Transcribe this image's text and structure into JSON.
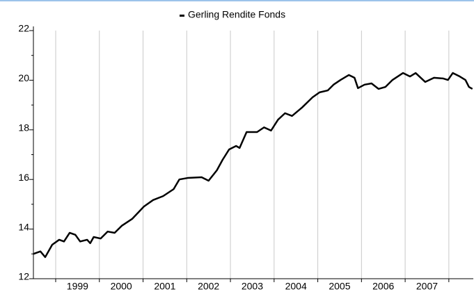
{
  "chart_data": {
    "type": "line",
    "series": [
      {
        "name": "Gerling Rendite Fonds",
        "color": "#000000",
        "x": [
          1998.49,
          1998.65,
          1998.76,
          1998.92,
          1999.08,
          1999.19,
          1999.32,
          1999.45,
          1999.56,
          1999.72,
          1999.79,
          1999.87,
          2000.03,
          2000.19,
          2000.35,
          2000.51,
          2000.75,
          2001.02,
          2001.23,
          2001.46,
          2001.7,
          2001.83,
          2002.02,
          2002.34,
          2002.5,
          2002.69,
          2002.82,
          2002.97,
          2003.13,
          2003.21,
          2003.37,
          2003.61,
          2003.77,
          2003.93,
          2004.09,
          2004.25,
          2004.41,
          2004.64,
          2004.88,
          2005.04,
          2005.23,
          2005.36,
          2005.52,
          2005.71,
          2005.84,
          2005.92,
          2006.07,
          2006.23,
          2006.39,
          2006.55,
          2006.71,
          2006.95,
          2007.11,
          2007.24,
          2007.46,
          2007.66,
          2007.87,
          2007.98,
          2008.09,
          2008.25,
          2008.38,
          2008.46,
          2008.54
        ],
        "values": [
          13.0,
          13.1,
          12.87,
          13.37,
          13.57,
          13.5,
          13.85,
          13.77,
          13.5,
          13.57,
          13.43,
          13.68,
          13.62,
          13.9,
          13.85,
          14.13,
          14.41,
          14.91,
          15.17,
          15.33,
          15.61,
          16.0,
          16.06,
          16.09,
          15.95,
          16.37,
          16.79,
          17.21,
          17.35,
          17.27,
          17.91,
          17.91,
          18.1,
          17.97,
          18.41,
          18.67,
          18.56,
          18.9,
          19.31,
          19.51,
          19.59,
          19.82,
          20.01,
          20.21,
          20.1,
          19.68,
          19.82,
          19.87,
          19.65,
          19.73,
          20.01,
          20.29,
          20.15,
          20.29,
          19.93,
          20.1,
          20.07,
          20.01,
          20.29,
          20.15,
          20.01,
          19.73,
          19.65
        ]
      }
    ],
    "xlim": [
      1998.49,
      2008.56
    ],
    "xticks": [
      {
        "value": 1999.5,
        "label": "1999"
      },
      {
        "value": 2000.5,
        "label": "2000"
      },
      {
        "value": 2001.5,
        "label": "2001"
      },
      {
        "value": 2002.5,
        "label": "2002"
      },
      {
        "value": 2003.5,
        "label": "2003"
      },
      {
        "value": 2004.5,
        "label": "2004"
      },
      {
        "value": 2005.5,
        "label": "2005"
      },
      {
        "value": 2006.5,
        "label": "2006"
      },
      {
        "value": 2007.5,
        "label": "2007"
      }
    ],
    "xgrid": [
      1999,
      2000,
      2001,
      2002,
      2003,
      2004,
      2005,
      2006,
      2007,
      2008
    ],
    "ylim": [
      12,
      22
    ],
    "yticks": [
      12,
      14,
      16,
      18,
      20,
      22
    ],
    "yminor": [
      13,
      15,
      17,
      19,
      21
    ],
    "grid": true,
    "legend": "top"
  }
}
